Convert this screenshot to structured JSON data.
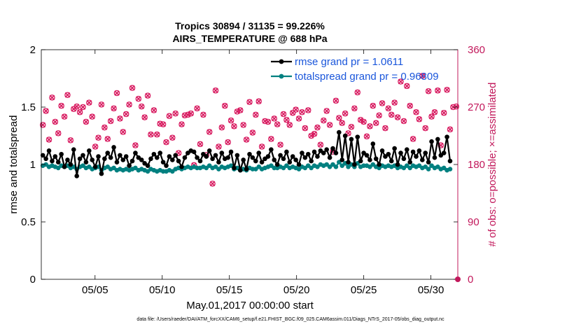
{
  "chart_data": {
    "type": "line",
    "title": "Tropics 30894 / 31135 = 99.226%",
    "subtitle": "AIRS_TEMPERATURE @ 688 hPa",
    "xlabel": "May.01,2017 00:00:00 start",
    "ylabel": "rmse and totalspread",
    "y2label": "# of obs: o=possible; ×=assimilated",
    "footnote": "data file: /Users/raeder/DAI/ATM_forcXX/CAM6_setup/f.e21.FHIST_BGC.f09_025.CAM6assim.011/Diags_NTrS_2017-05/obs_diag_output.nc",
    "xlim": [
      1,
      32
    ],
    "ylim": [
      0,
      2
    ],
    "y2lim": [
      0,
      360
    ],
    "xticks": [
      5,
      10,
      15,
      20,
      25,
      30
    ],
    "xtick_labels": [
      "05/05",
      "05/10",
      "05/15",
      "05/20",
      "05/25",
      "05/30"
    ],
    "yticks": [
      0,
      0.5,
      1,
      1.5,
      2
    ],
    "ytick_labels": [
      "0",
      "0.5",
      "1",
      "1.5",
      "2"
    ],
    "y2ticks": [
      0,
      90,
      180,
      270,
      360
    ],
    "y2tick_labels": [
      "0",
      "90",
      "180",
      "270",
      "360"
    ],
    "legend_position": "top-right",
    "colors": {
      "rmse": "#000000",
      "spread": "#008080",
      "obs": "#d81b60",
      "y2axis": "#c2185b",
      "legend_text": "#1a56db"
    },
    "series": [
      {
        "name": "rmse grand pr = 1.0611",
        "values": [
          1.08,
          1.05,
          1.12,
          1.03,
          1.07,
          1.02,
          1.09,
          0.98,
          1.04,
          1.0,
          1.13,
          0.9,
          1.05,
          1.08,
          1.02,
          1.12,
          1.04,
          0.98,
          1.07,
          0.92,
          1.05,
          1.1,
          1.06,
          1.15,
          1.02,
          1.08,
          1.04,
          1.07,
          0.99,
          1.03,
          1.1,
          1.06,
          1.04,
          1.01,
          0.99,
          1.05,
          1.09,
          1.06,
          1.1,
          1.02,
          0.99,
          1.07,
          1.04,
          1.08,
          1.03,
          0.98,
          1.06,
          1.1,
          1.12,
          1.11,
          1.06,
          1.03,
          1.09,
          1.07,
          1.12,
          1.05,
          1.08,
          1.02,
          1.1,
          1.05,
          1.06,
          1.11,
          0.97,
          1.08,
          0.95,
          1.04,
          0.96,
          1.09,
          1.06,
          1.03,
          1.1,
          1.02,
          1.05,
          1.07,
          1.13,
          1.04,
          1.0,
          1.08,
          1.05,
          1.11,
          1.02,
          1.07,
          1.04,
          1.0,
          1.1,
          1.06,
          1.09,
          1.03,
          1.11,
          1.07,
          1.12,
          1.1,
          1.13,
          1.06,
          1.14,
          1.1,
          1.28,
          1.04,
          1.25,
          1.02,
          1.22,
          1.0,
          1.24,
          1.03,
          1.1,
          1.08,
          1.04,
          1.18,
          1.05,
          1.0,
          1.12,
          1.07,
          1.09,
          1.03,
          1.14,
          1.0,
          1.1,
          1.05,
          1.13,
          1.02,
          1.11,
          1.07,
          1.12,
          1.04,
          1.1,
          1.02,
          1.2,
          1.06,
          1.22,
          1.08,
          1.1,
          1.24,
          1.03
        ]
      },
      {
        "name": "totalspread grand pr = 0.96809",
        "values": [
          0.99,
          1.0,
          0.98,
          0.99,
          0.98,
          0.97,
          0.99,
          0.98,
          0.99,
          0.97,
          0.98,
          0.96,
          0.98,
          0.99,
          0.97,
          0.98,
          0.96,
          0.97,
          0.98,
          0.95,
          0.97,
          0.98,
          0.96,
          0.97,
          0.95,
          0.96,
          0.95,
          0.96,
          0.95,
          0.96,
          0.97,
          0.95,
          0.96,
          0.95,
          0.94,
          0.96,
          0.95,
          0.94,
          0.95,
          0.94,
          0.94,
          0.95,
          0.94,
          0.96,
          0.97,
          0.96,
          0.97,
          0.98,
          0.97,
          0.98,
          0.97,
          0.97,
          0.98,
          0.97,
          0.99,
          0.97,
          0.98,
          0.96,
          0.98,
          0.97,
          0.98,
          0.99,
          0.96,
          0.97,
          0.95,
          0.96,
          0.95,
          0.97,
          0.96,
          0.96,
          0.98,
          0.96,
          0.97,
          0.98,
          0.99,
          0.97,
          0.97,
          0.98,
          0.97,
          0.99,
          0.97,
          0.98,
          0.97,
          0.96,
          0.98,
          0.97,
          0.99,
          0.97,
          0.99,
          0.98,
          1.0,
          0.99,
          1.0,
          0.98,
          1.0,
          0.98,
          1.02,
          0.99,
          1.01,
          0.98,
          1.0,
          0.98,
          1.01,
          0.98,
          0.99,
          0.99,
          0.98,
          1.0,
          0.98,
          0.97,
          0.99,
          0.98,
          0.99,
          0.98,
          0.99,
          0.97,
          0.98,
          0.97,
          0.99,
          0.97,
          0.99,
          0.98,
          0.99,
          0.97,
          0.98,
          0.96,
          0.99,
          0.97,
          0.98,
          0.96,
          0.97,
          0.95,
          0.96
        ]
      }
    ],
    "obs_counts": [
      242,
      264,
      219,
      285,
      247,
      229,
      272,
      255,
      289,
      218,
      267,
      271,
      262,
      270,
      247,
      277,
      255,
      208,
      222,
      274,
      238,
      220,
      248,
      268,
      292,
      252,
      231,
      259,
      274,
      300,
      210,
      283,
      271,
      254,
      288,
      227,
      265,
      227,
      244,
      243,
      215,
      256,
      222,
      260,
      198,
      243,
      257,
      258,
      260,
      179,
      268,
      212,
      258,
      195,
      231,
      150,
      296,
      208,
      238,
      272,
      215,
      249,
      240,
      263,
      265,
      242,
      219,
      278,
      230,
      258,
      279,
      208,
      248,
      247,
      220,
      252,
      243,
      211,
      259,
      250,
      242,
      261,
      266,
      252,
      262,
      237,
      265,
      225,
      228,
      238,
      211,
      249,
      264,
      242,
      200,
      280,
      253,
      245,
      260,
      229,
      239,
      268,
      293,
      250,
      247,
      224,
      240,
      272,
      245,
      257,
      276,
      237,
      268,
      258,
      277,
      254,
      310,
      248,
      303,
      272,
      220,
      262,
      251,
      319,
      237,
      295,
      255,
      262,
      296,
      210,
      261,
      297,
      235,
      270,
      271
    ]
  }
}
